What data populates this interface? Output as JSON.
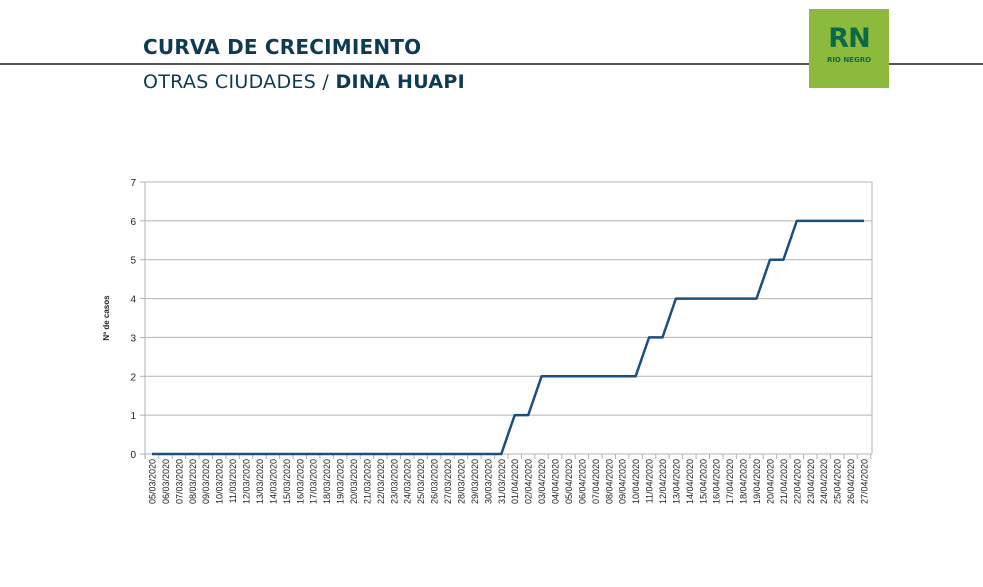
{
  "header": {
    "title": "CURVA DE CRECIMIENTO",
    "subtitle_prefix": "OTRAS CIUDADES / ",
    "subtitle_city": "DINA HUAPI"
  },
  "logo": {
    "main": "RN",
    "sub": "RIO NEGRO",
    "bg_color": "#8cba3c",
    "fg_color": "#0b6a45"
  },
  "chart_data": {
    "type": "line",
    "title": "",
    "xlabel": "",
    "ylabel": "Nº de casos",
    "ylim": [
      0,
      7
    ],
    "yticks": [
      0,
      1,
      2,
      3,
      4,
      5,
      6,
      7
    ],
    "grid": true,
    "legend": null,
    "line_color": "#1a4f7e",
    "categories": [
      "05/03/2020",
      "06/03/2020",
      "07/03/2020",
      "08/03/2020",
      "09/03/2020",
      "10/03/2020",
      "11/03/2020",
      "12/03/2020",
      "13/03/2020",
      "14/03/2020",
      "15/03/2020",
      "16/03/2020",
      "17/03/2020",
      "18/03/2020",
      "19/03/2020",
      "20/03/2020",
      "21/03/2020",
      "22/03/2020",
      "23/03/2020",
      "24/03/2020",
      "25/03/2020",
      "26/03/2020",
      "27/03/2020",
      "28/03/2020",
      "29/03/2020",
      "30/03/2020",
      "31/03/2020",
      "01/04/2020",
      "02/04/2020",
      "03/04/2020",
      "04/04/2020",
      "05/04/2020",
      "06/04/2020",
      "07/04/2020",
      "08/04/2020",
      "09/04/2020",
      "10/04/2020",
      "11/04/2020",
      "12/04/2020",
      "13/04/2020",
      "14/04/2020",
      "15/04/2020",
      "16/04/2020",
      "17/04/2020",
      "18/04/2020",
      "19/04/2020",
      "20/04/2020",
      "21/04/2020",
      "22/04/2020",
      "23/04/2020",
      "24/04/2020",
      "25/04/2020",
      "26/04/2020",
      "27/04/2020"
    ],
    "series": [
      {
        "name": "Nº de casos",
        "values": [
          0,
          0,
          0,
          0,
          0,
          0,
          0,
          0,
          0,
          0,
          0,
          0,
          0,
          0,
          0,
          0,
          0,
          0,
          0,
          0,
          0,
          0,
          0,
          0,
          0,
          0,
          0,
          1,
          1,
          2,
          2,
          2,
          2,
          2,
          2,
          2,
          2,
          3,
          3,
          4,
          4,
          4,
          4,
          4,
          4,
          4,
          5,
          5,
          6,
          6,
          6,
          6,
          6,
          6
        ]
      }
    ]
  }
}
